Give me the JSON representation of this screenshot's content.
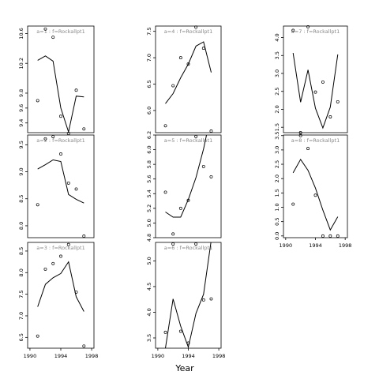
{
  "figure": {
    "xlabel": "Year",
    "x_ticks": [
      1990,
      1994,
      1998
    ],
    "xlim": [
      1989.7,
      1998.3
    ]
  },
  "chart_data": [
    {
      "type": "line",
      "title": "a=1  :  f=Rockallpt1",
      "years": [
        1991,
        1992,
        1993,
        1994,
        1995,
        1996,
        1997
      ],
      "line": [
        10.24,
        10.3,
        10.23,
        9.6,
        9.28,
        9.76,
        9.75
      ],
      "points": [
        9.7,
        10.66,
        10.55,
        9.49,
        9.26,
        9.84,
        9.32
      ],
      "ylim": [
        9.27,
        10.7
      ],
      "y_ticks": [
        "9.4",
        "9.6",
        "9.8",
        "10.2",
        "10.6"
      ],
      "y_tick_values": [
        9.4,
        9.6,
        9.8,
        10.2,
        10.6
      ],
      "show_x_axis": false
    },
    {
      "type": "line",
      "title": "a=2  :  f=Rockallpt1",
      "years": [
        1991,
        1992,
        1993,
        1994,
        1995,
        1996,
        1997
      ],
      "line": [
        9.05,
        9.13,
        9.22,
        9.19,
        8.58,
        8.49,
        8.42
      ],
      "points": [
        8.39,
        9.61,
        9.65,
        9.33,
        8.79,
        8.68,
        7.81
      ],
      "ylim": [
        7.78,
        9.68
      ],
      "y_ticks": [
        "8.0",
        "8.5",
        "9.0",
        "9.5"
      ],
      "y_tick_values": [
        8.0,
        8.5,
        9.0,
        9.5
      ],
      "show_x_axis": false
    },
    {
      "type": "line",
      "title": "a=3  :  f=Rockallpt1",
      "years": [
        1991,
        1992,
        1993,
        1994,
        1995,
        1996,
        1997
      ],
      "line": [
        7.21,
        7.73,
        7.88,
        7.98,
        8.25,
        7.44,
        7.1
      ],
      "points": [
        6.53,
        8.08,
        8.21,
        8.38,
        8.65,
        7.55,
        6.3
      ],
      "ylim": [
        6.25,
        8.7
      ],
      "y_ticks": [
        "6.5",
        "7.0",
        "7.5",
        "8.0",
        "8.5"
      ],
      "y_tick_values": [
        6.5,
        7.0,
        7.5,
        8.0,
        8.5
      ],
      "show_x_axis": true
    },
    {
      "type": "line",
      "title": "a=4  :  f=Rockallpt1",
      "years": [
        1991,
        1992,
        1993,
        1994,
        1995,
        1996,
        1997
      ],
      "line": [
        6.13,
        6.32,
        6.62,
        6.88,
        7.22,
        7.3,
        6.72
      ],
      "points": [
        5.71,
        6.47,
        7.0,
        6.88,
        7.58,
        7.18,
        5.61
      ],
      "ylim": [
        5.58,
        7.6
      ],
      "y_ticks": [
        "6.0",
        "6.5",
        "7.0",
        "7.5"
      ],
      "y_tick_values": [
        6.0,
        6.5,
        7.0,
        7.5
      ],
      "show_x_axis": false
    },
    {
      "type": "line",
      "title": "a=5  :  f=Rockallpt1",
      "years": [
        1991,
        1992,
        1993,
        1994,
        1995,
        1996,
        1997
      ],
      "line": [
        5.15,
        5.08,
        5.08,
        5.32,
        5.62,
        6.01,
        6.5
      ],
      "points": [
        5.42,
        4.85,
        5.2,
        5.31,
        6.18,
        5.77,
        5.63
      ],
      "ylim": [
        4.8,
        6.2
      ],
      "y_ticks": [
        "4.8",
        "5.0",
        "5.2",
        "5.4",
        "5.6",
        "5.8",
        "6.0",
        "6.2"
      ],
      "y_tick_values": [
        4.8,
        5.0,
        5.2,
        5.4,
        5.6,
        5.8,
        6.0,
        6.2
      ],
      "show_x_axis": false
    },
    {
      "type": "line",
      "title": "a=6  :  f=Rockallpt1",
      "years": [
        1991,
        1992,
        1993,
        1994,
        1995,
        1996,
        1997
      ],
      "line": [
        3.3,
        4.26,
        3.73,
        3.32,
        3.98,
        4.35,
        5.4
      ],
      "points": [
        3.61,
        5.33,
        3.63,
        3.4,
        5.33,
        4.24,
        4.26
      ],
      "ylim": [
        3.3,
        5.36
      ],
      "y_ticks": [
        "3.5",
        "4.0",
        "4.5",
        "5.0"
      ],
      "y_tick_values": [
        3.5,
        4.0,
        4.5,
        5.0
      ],
      "show_x_axis": true
    },
    {
      "type": "line",
      "title": "a=7  :  f=Rockallpt1",
      "years": [
        1991,
        1992,
        1993,
        1994,
        1995,
        1996,
        1997
      ],
      "line": [
        3.57,
        2.2,
        3.1,
        2.03,
        1.48,
        2.06,
        3.53
      ],
      "points": [
        4.2,
        1.35,
        4.3,
        2.48,
        2.76,
        1.79,
        2.21
      ],
      "ylim": [
        1.35,
        4.32
      ],
      "y_ticks": [
        "1.5",
        "2.0",
        "2.5",
        "3.0",
        "3.5",
        "4.0"
      ],
      "y_tick_values": [
        1.5,
        2.0,
        2.5,
        3.0,
        3.5,
        4.0
      ],
      "show_x_axis": false
    },
    {
      "type": "line",
      "title": "a=8  :  f=Rockallpt1",
      "years": [
        1991,
        1992,
        1993,
        1994,
        1995,
        1996,
        1997
      ],
      "line": [
        2.2,
        2.67,
        2.29,
        1.67,
        0.9,
        0.21,
        0.67
      ],
      "points": [
        1.11,
        3.5,
        3.05,
        1.42,
        0.0,
        0.0,
        0.0
      ],
      "ylim": [
        -0.06,
        3.52
      ],
      "y_ticks": [
        "0.0",
        "0.5",
        "1.0",
        "1.5",
        "2.0",
        "2.5",
        "3.0",
        "3.5"
      ],
      "y_tick_values": [
        0.0,
        0.5,
        1.0,
        1.5,
        2.0,
        2.5,
        3.0,
        3.5
      ],
      "show_x_axis": true
    }
  ]
}
